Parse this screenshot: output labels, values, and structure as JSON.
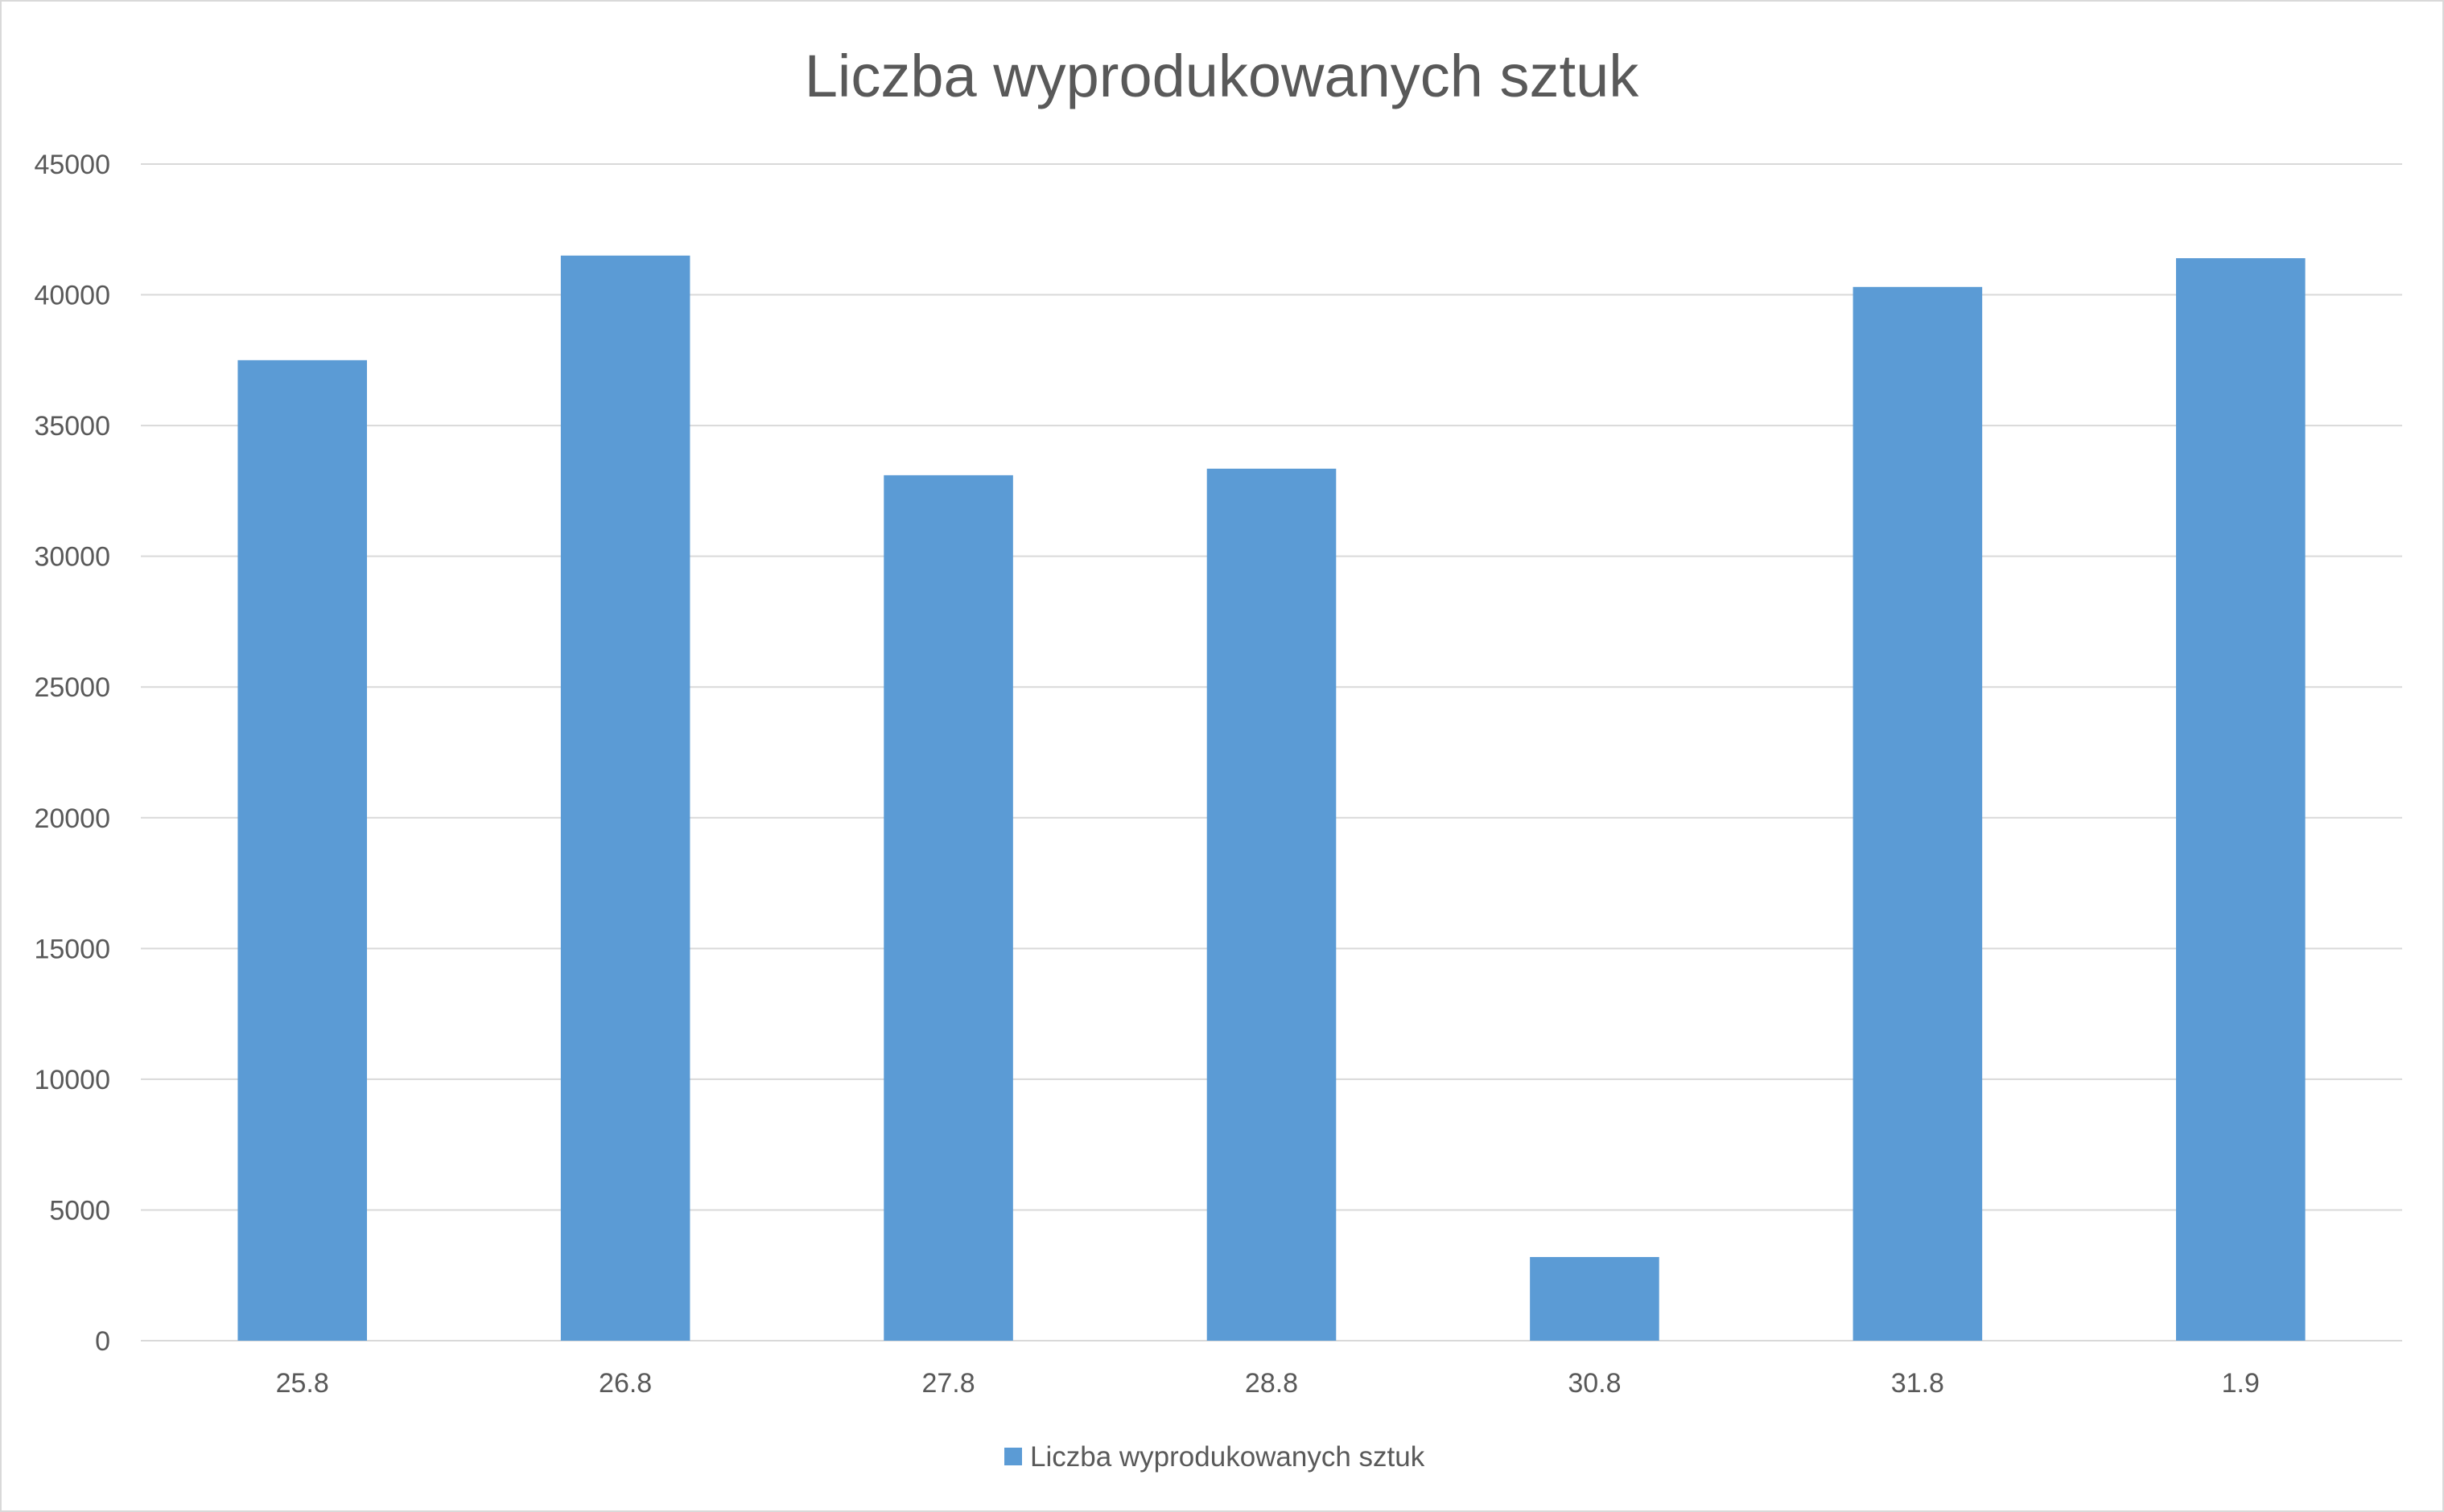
{
  "chart_data": {
    "type": "bar",
    "title": "Liczba wyprodukowanych sztuk",
    "categories": [
      "25.8",
      "26.8",
      "27.8",
      "28.8",
      "30.8",
      "31.8",
      "1.9"
    ],
    "series": [
      {
        "name": "Liczba wyprodukowanych sztuk",
        "values": [
          37500,
          41500,
          33100,
          33350,
          3200,
          40300,
          41400
        ],
        "color": "#5b9bd5"
      }
    ],
    "y_ticks": [
      "0",
      "5000",
      "10000",
      "15000",
      "20000",
      "25000",
      "30000",
      "35000",
      "40000",
      "45000"
    ],
    "ylim": [
      0,
      45000
    ],
    "y_step": 5000,
    "xlabel": "",
    "ylabel": "",
    "grid": true,
    "legend_position": "bottom"
  }
}
